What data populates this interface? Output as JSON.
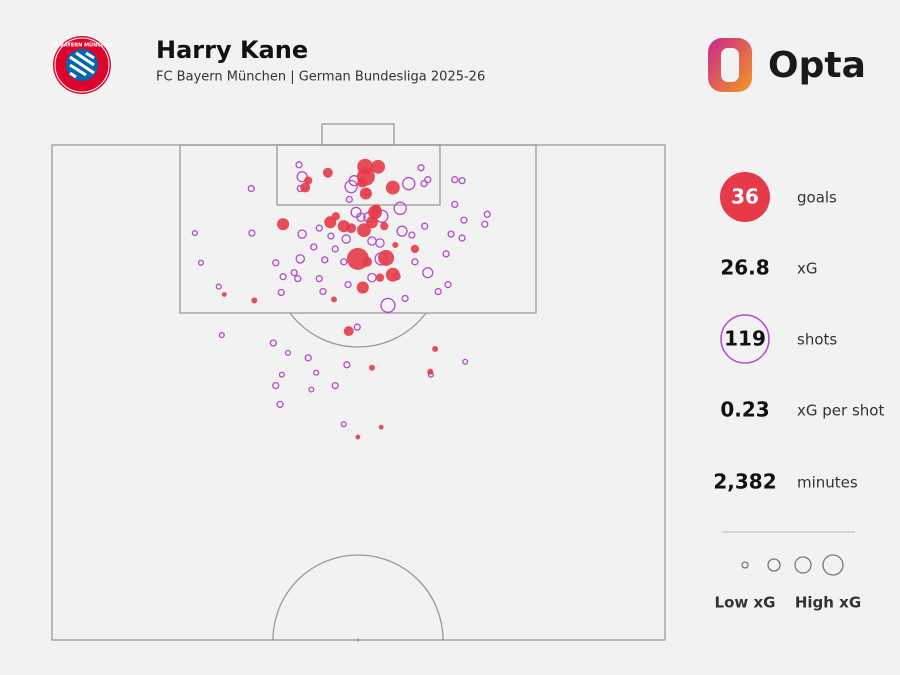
{
  "title": "Harry Kane",
  "subtitle": "FC Bayern München | German Bundesliga 2025-26",
  "logo_text": "FC BAYERN MÜNCHEN",
  "brand": "Opta",
  "chart_data": {
    "type": "scatter",
    "xlim": [
      0,
      100
    ],
    "ylim": [
      0,
      50
    ],
    "series": [
      {
        "color": "#e63a48",
        "filled": true,
        "x": [
          51.1,
          53.2,
          51.2,
          45.0,
          41.3,
          51.2,
          55.6,
          52.7,
          37.7,
          45.4,
          47.6,
          50.9,
          52.2,
          49.9,
          54.5,
          55.6,
          50.7,
          59.2,
          48.4,
          33.0,
          28.1,
          46.0,
          62.5,
          52.2,
          61.7,
          53.7,
          49.9,
          48.8,
          52.9,
          50.6,
          46.3,
          54.2,
          41.8,
          56.0,
          53.5,
          51.4
        ],
        "values": [
          2.2,
          2.2,
          3.2,
          2.8,
          4.3,
          4.9,
          4.3,
          6.8,
          8.0,
          7.8,
          8.2,
          8.6,
          7.8,
          11.5,
          11.4,
          13.1,
          14.4,
          10.5,
          18.8,
          15.7,
          15.1,
          15.6,
          20.6,
          22.5,
          22.9,
          28.5,
          29.5,
          8.4,
          6.5,
          3.8,
          7.2,
          8.2,
          3.6,
          10.1,
          13.4,
          11.8
        ],
        "sizes": [
          0.25,
          0.18,
          0.33,
          0.08,
          0.08,
          0.13,
          0.18,
          0.18,
          0.13,
          0.13,
          0.13,
          0.18,
          0.13,
          0.51,
          0.25,
          0.18,
          0.13,
          0.05,
          0.08,
          0.02,
          0.01,
          0.02,
          0.02,
          0.02,
          0.02,
          0.01,
          0.01,
          0.08,
          0.08,
          0.08,
          0.05,
          0.05,
          0.05,
          0.02,
          0.05,
          0.08
        ]
      },
      {
        "color": "#b04cc8",
        "filled": false,
        "x": [
          40.3,
          60.2,
          40.8,
          48.8,
          49.3,
          58.2,
          60.7,
          61.3,
          65.7,
          66.9,
          32.5,
          40.5,
          56.8,
          49.6,
          51.7,
          53.8,
          50.4,
          65.7,
          71.0,
          67.2,
          70.6,
          23.3,
          32.6,
          40.8,
          43.6,
          45.5,
          48.0,
          52.2,
          53.5,
          57.1,
          58.7,
          66.9,
          24.3,
          36.5,
          40.5,
          44.5,
          47.6,
          53.7,
          59.2,
          64.3,
          61.3,
          37.7,
          39.5,
          43.6,
          48.3,
          52.2,
          63.0,
          64.6,
          27.2,
          37.4,
          44.2,
          54.8,
          57.6,
          27.7,
          49.8,
          36.1,
          38.5,
          67.4,
          41.8,
          48.1,
          37.5,
          43.1,
          36.5,
          46.2,
          37.2,
          42.3,
          47.6,
          61.8,
          42.7,
          46.2,
          40.1,
          56.3,
          51.4,
          48.5,
          65.1,
          60.8
        ],
        "values": [
          2.0,
          2.3,
          3.2,
          4.2,
          3.6,
          3.9,
          3.9,
          3.5,
          3.5,
          3.6,
          4.4,
          4.4,
          6.4,
          6.8,
          7.3,
          7.2,
          7.3,
          6.0,
          7.0,
          7.6,
          8.0,
          8.9,
          8.9,
          9.0,
          8.4,
          9.2,
          9.5,
          9.7,
          9.9,
          8.7,
          9.1,
          9.4,
          11.9,
          11.9,
          11.5,
          11.6,
          11.8,
          11.5,
          11.8,
          11.0,
          12.9,
          13.3,
          12.9,
          13.5,
          14.1,
          13.4,
          14.8,
          14.1,
          14.3,
          14.9,
          14.8,
          16.2,
          15.5,
          19.2,
          18.4,
          20.0,
          21.0,
          21.9,
          21.5,
          22.2,
          23.2,
          23.0,
          24.3,
          24.3,
          26.2,
          24.7,
          28.2,
          23.2,
          10.3,
          10.5,
          13.5,
          13.3,
          4.8,
          5.5,
          9.0,
          8.2
        ],
        "sizes": [
          0.02,
          0.02,
          0.08,
          0.13,
          0.08,
          0.13,
          0.02,
          0.02,
          0.02,
          0.02,
          0.02,
          0.02,
          0.13,
          0.08,
          0.08,
          0.13,
          0.05,
          0.02,
          0.02,
          0.02,
          0.02,
          0.01,
          0.02,
          0.05,
          0.02,
          0.02,
          0.05,
          0.05,
          0.05,
          0.08,
          0.02,
          0.02,
          0.01,
          0.02,
          0.05,
          0.02,
          0.02,
          0.13,
          0.02,
          0.02,
          0.08,
          0.02,
          0.02,
          0.02,
          0.02,
          0.05,
          0.02,
          0.02,
          0.01,
          0.02,
          0.02,
          0.18,
          0.02,
          0.01,
          0.02,
          0.02,
          0.01,
          0.01,
          0.02,
          0.02,
          0.01,
          0.01,
          0.02,
          0.02,
          0.02,
          0.01,
          0.01,
          0.01,
          0.02,
          0.02,
          0.02,
          0.02,
          0.02,
          0.02,
          0.02,
          0.02
        ]
      }
    ]
  },
  "stats": [
    {
      "value": 36,
      "label": "goals"
    },
    {
      "value": 26.8,
      "label": "xG"
    },
    {
      "value": 119,
      "label": "shots"
    },
    {
      "value": 0.23,
      "label": "xG per shot"
    },
    {
      "value": 2382,
      "value_label": "2,382",
      "label": "minutes"
    }
  ],
  "size_legend": {
    "low": "Low xG",
    "high": "High xG"
  }
}
